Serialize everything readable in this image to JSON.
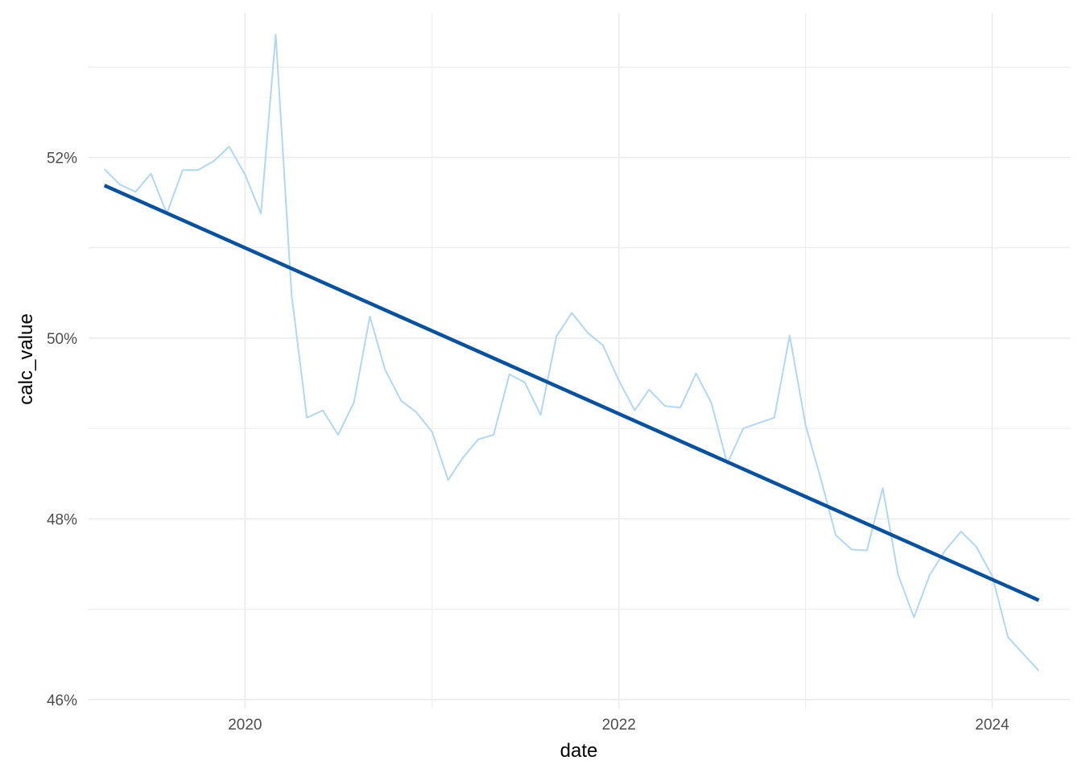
{
  "chart_data": {
    "type": "line",
    "xlabel": "date",
    "ylabel": "calc_value",
    "x_ticks": [
      "2020",
      "2022",
      "2024"
    ],
    "y_ticks": [
      "46%",
      "48%",
      "50%",
      "52%"
    ],
    "y_tick_values": [
      46,
      48,
      50,
      52
    ],
    "y_range": [
      45.9,
      53.6
    ],
    "x_range": [
      "2019-03-01",
      "2024-06-01"
    ],
    "grid": true,
    "legend": "none",
    "colors": {
      "series": "#b3d7f2",
      "trend": "#08519c",
      "grid": "#ebebeb"
    },
    "series": [
      {
        "kind": "observed",
        "x": [
          "2019-04-01",
          "2019-05-01",
          "2019-06-01",
          "2019-07-01",
          "2019-08-01",
          "2019-09-01",
          "2019-10-01",
          "2019-11-01",
          "2019-12-01",
          "2020-01-01",
          "2020-02-01",
          "2020-03-01",
          "2020-04-01",
          "2020-05-01",
          "2020-06-01",
          "2020-07-01",
          "2020-08-01",
          "2020-09-01",
          "2020-10-01",
          "2020-11-01",
          "2020-12-01",
          "2021-01-01",
          "2021-02-01",
          "2021-03-01",
          "2021-04-01",
          "2021-05-01",
          "2021-06-01",
          "2021-07-01",
          "2021-08-01",
          "2021-09-01",
          "2021-10-01",
          "2021-11-01",
          "2021-12-01",
          "2022-01-01",
          "2022-02-01",
          "2022-03-01",
          "2022-04-01",
          "2022-05-01",
          "2022-06-01",
          "2022-07-01",
          "2022-08-01",
          "2022-09-01",
          "2022-10-01",
          "2022-11-01",
          "2022-12-01",
          "2023-01-01",
          "2023-02-01",
          "2023-03-01",
          "2023-04-01",
          "2023-05-01",
          "2023-06-01",
          "2023-07-01",
          "2023-08-01",
          "2023-09-01",
          "2023-10-01",
          "2023-11-01",
          "2023-12-01",
          "2024-01-01",
          "2024-02-01",
          "2024-03-01",
          "2024-04-01"
        ],
        "values": [
          51.87,
          51.7,
          51.62,
          51.82,
          51.38,
          51.86,
          51.86,
          51.96,
          52.12,
          51.81,
          51.38,
          53.36,
          50.48,
          49.12,
          49.2,
          48.93,
          49.29,
          50.24,
          49.65,
          49.31,
          49.18,
          48.96,
          48.43,
          48.67,
          48.88,
          48.93,
          49.6,
          49.51,
          49.15,
          50.02,
          50.28,
          50.06,
          49.92,
          49.53,
          49.2,
          49.43,
          49.25,
          49.23,
          49.61,
          49.28,
          48.61,
          49.0,
          49.06,
          49.12,
          50.03,
          49.04,
          48.42,
          47.82,
          47.66,
          47.65,
          48.34,
          47.38,
          46.91,
          47.38,
          47.65,
          47.86,
          47.69,
          47.37,
          46.69,
          46.51,
          46.32
        ]
      },
      {
        "kind": "trend",
        "x": [
          "2019-04-01",
          "2024-04-01"
        ],
        "values": [
          51.69,
          47.1
        ]
      }
    ]
  }
}
